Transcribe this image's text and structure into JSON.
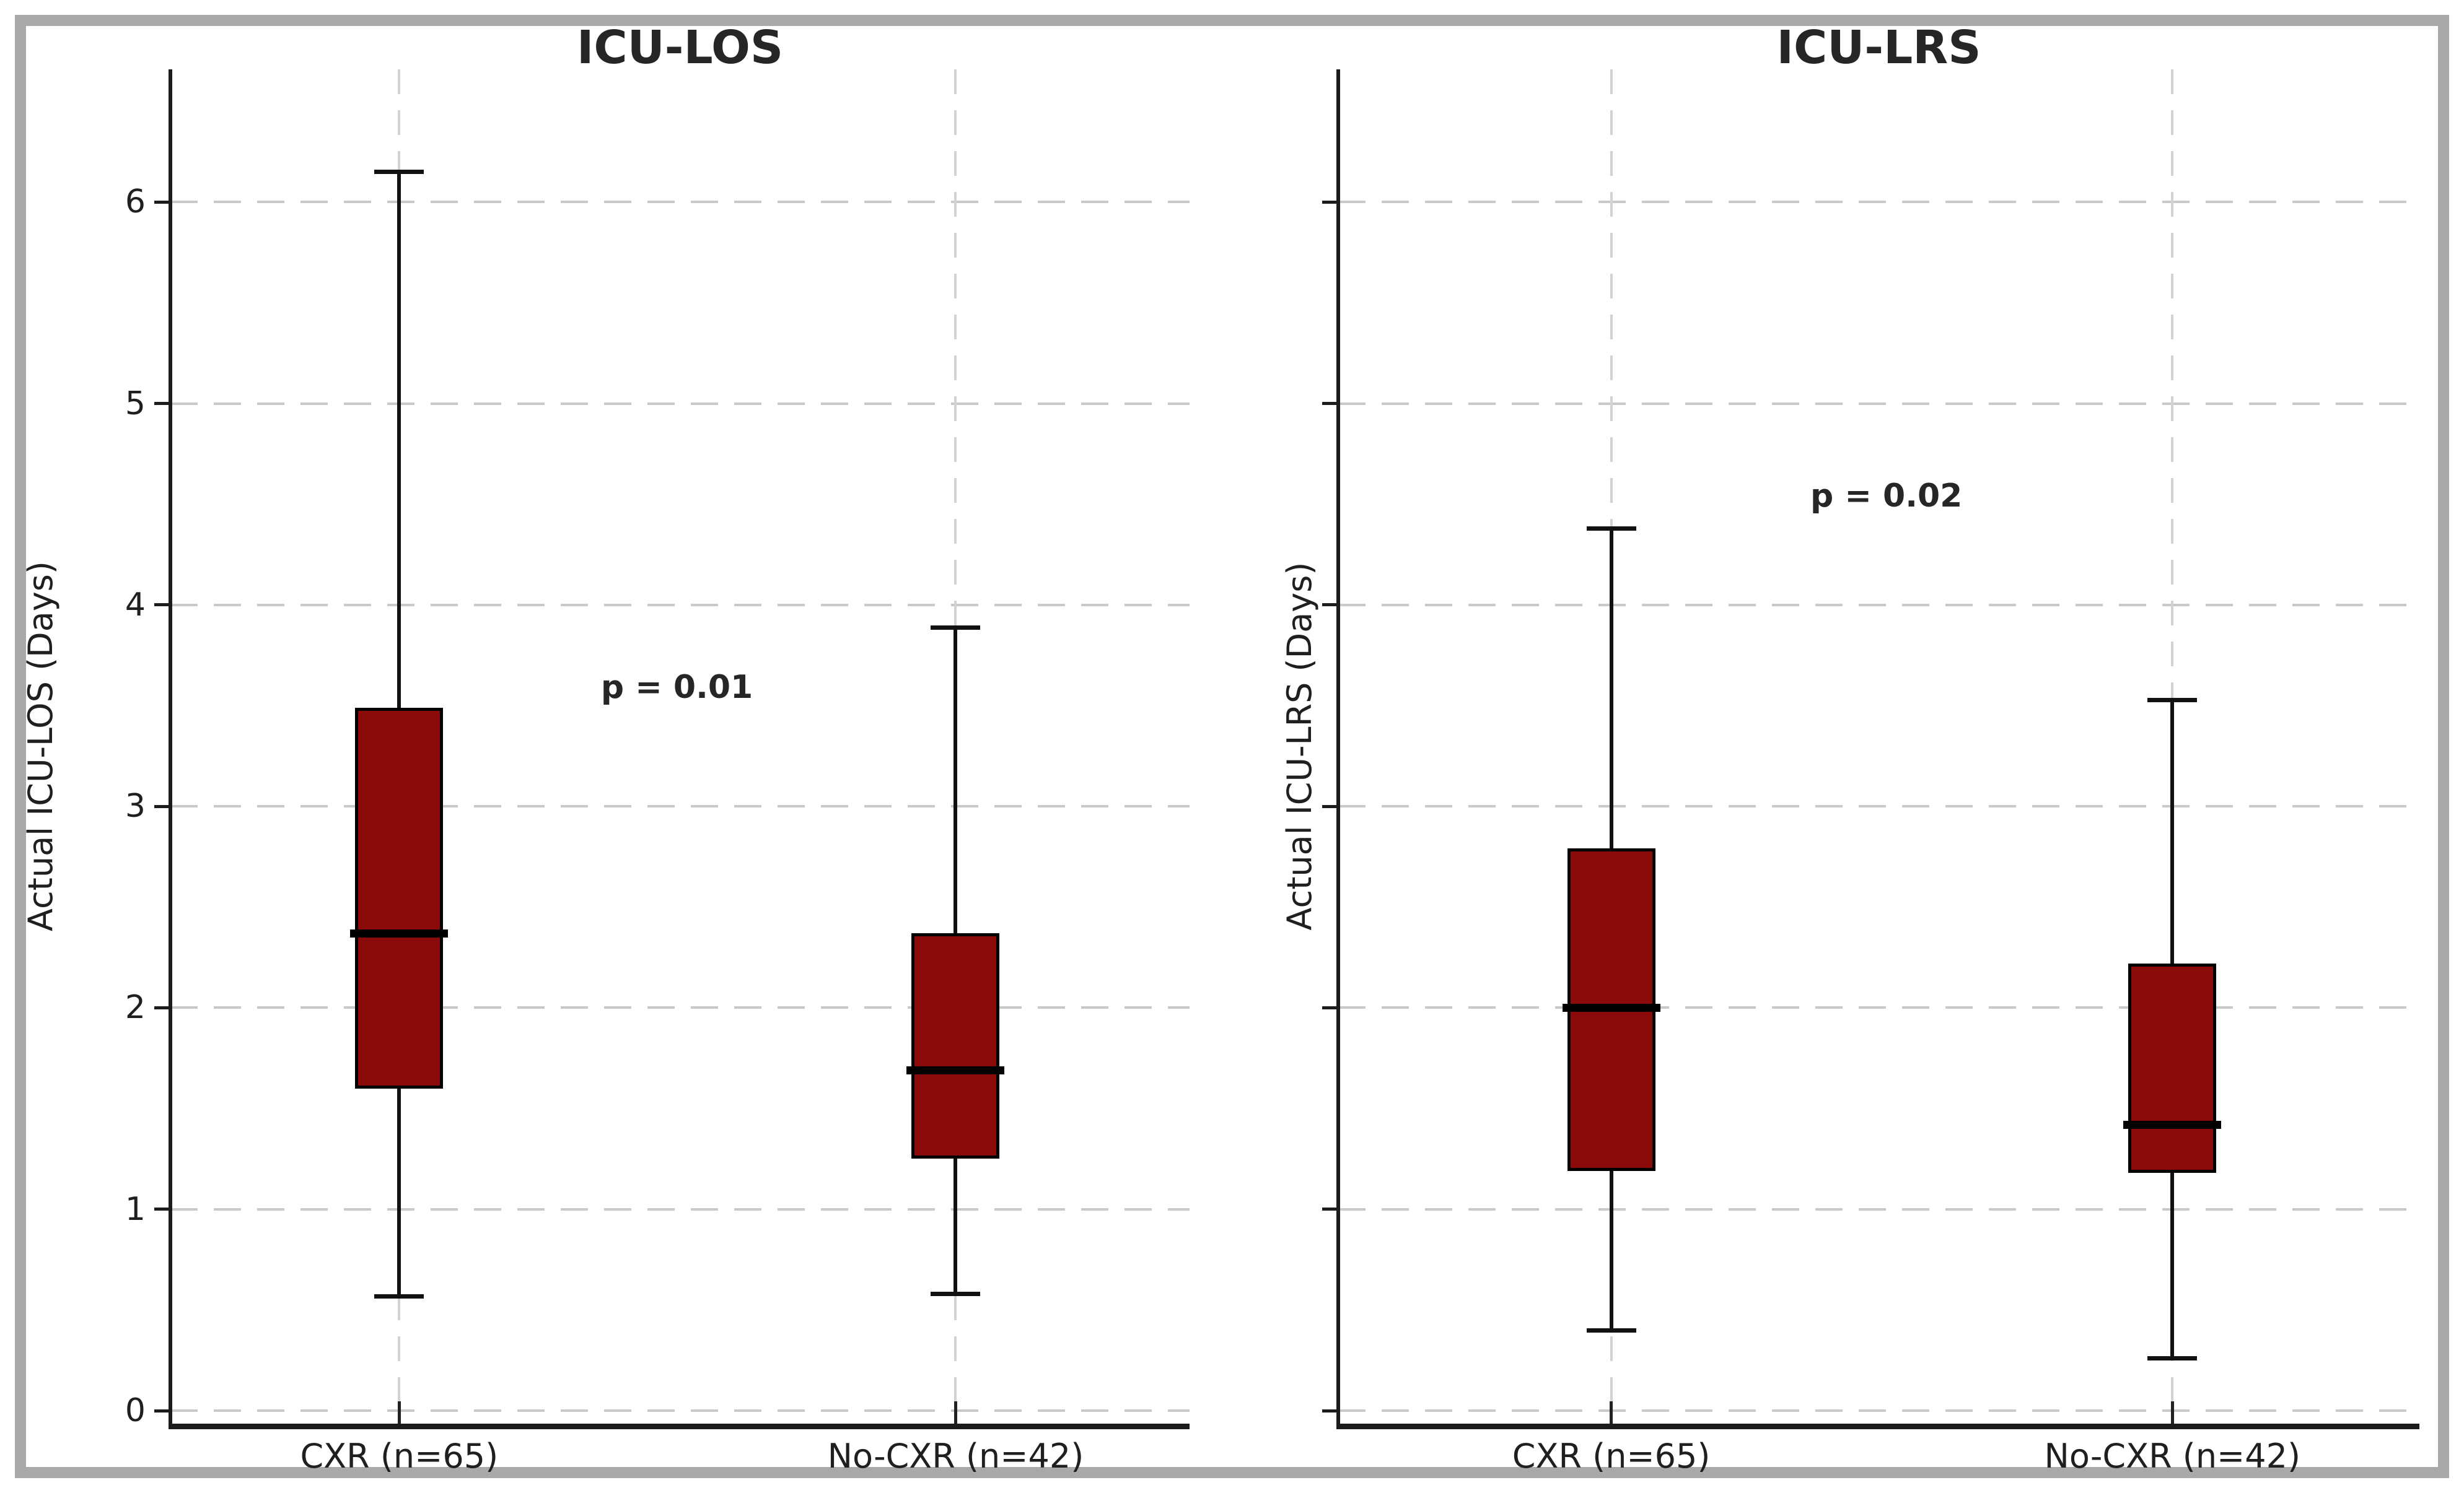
{
  "figure": {
    "background": "#ffffff",
    "frame_color": "#a9a9a9",
    "box_fill": "#8b0a0a",
    "box_edge": "#000000",
    "line_color": "#111111",
    "grid_color": "#c9c9c9",
    "vgrid_color": "#d2d2d2",
    "axis_color": "#1c1c1c",
    "text_color": "#262626"
  },
  "chart_data": [
    {
      "type": "boxplot",
      "title": "ICU-LOS",
      "ylabel": "Actual ICU-LOS (Days)",
      "categories": [
        "CXR (n=65)",
        "No-CXR (n=42)"
      ],
      "yticks": [
        "0",
        "1",
        "2",
        "3",
        "4",
        "5",
        "6"
      ],
      "show_ytick_labels": true,
      "ylim": [
        -0.06,
        6.66
      ],
      "grid": true,
      "annotation": {
        "text": "p = 0.01",
        "x_frac": 0.497,
        "y_value": 3.59
      },
      "series": [
        {
          "label": "CXR (n=65)",
          "whisker_low": 0.57,
          "q1": 1.6,
          "median": 2.37,
          "q3": 3.49,
          "whisker_high": 6.15
        },
        {
          "label": "No-CXR (n=42)",
          "whisker_low": 0.58,
          "q1": 1.25,
          "median": 1.69,
          "q3": 2.37,
          "whisker_high": 3.89
        }
      ]
    },
    {
      "type": "boxplot",
      "title": "ICU-LRS",
      "ylabel": "Actual ICU-LRS (Days)",
      "categories": [
        "CXR (n=65)",
        "No-CXR (n=42)"
      ],
      "yticks": [
        "0",
        "1",
        "2",
        "3",
        "4",
        "5",
        "6"
      ],
      "show_ytick_labels": false,
      "ylim": [
        -0.06,
        6.66
      ],
      "grid": true,
      "annotation": {
        "text": "p = 0.02",
        "x_frac": 0.507,
        "y_value": 4.54
      },
      "series": [
        {
          "label": "CXR (n=65)",
          "whisker_low": 0.4,
          "q1": 1.19,
          "median": 2.0,
          "q3": 2.79,
          "whisker_high": 4.38
        },
        {
          "label": "No-CXR (n=42)",
          "whisker_low": 0.26,
          "q1": 1.18,
          "median": 1.42,
          "q3": 2.22,
          "whisker_high": 3.53
        }
      ]
    }
  ]
}
